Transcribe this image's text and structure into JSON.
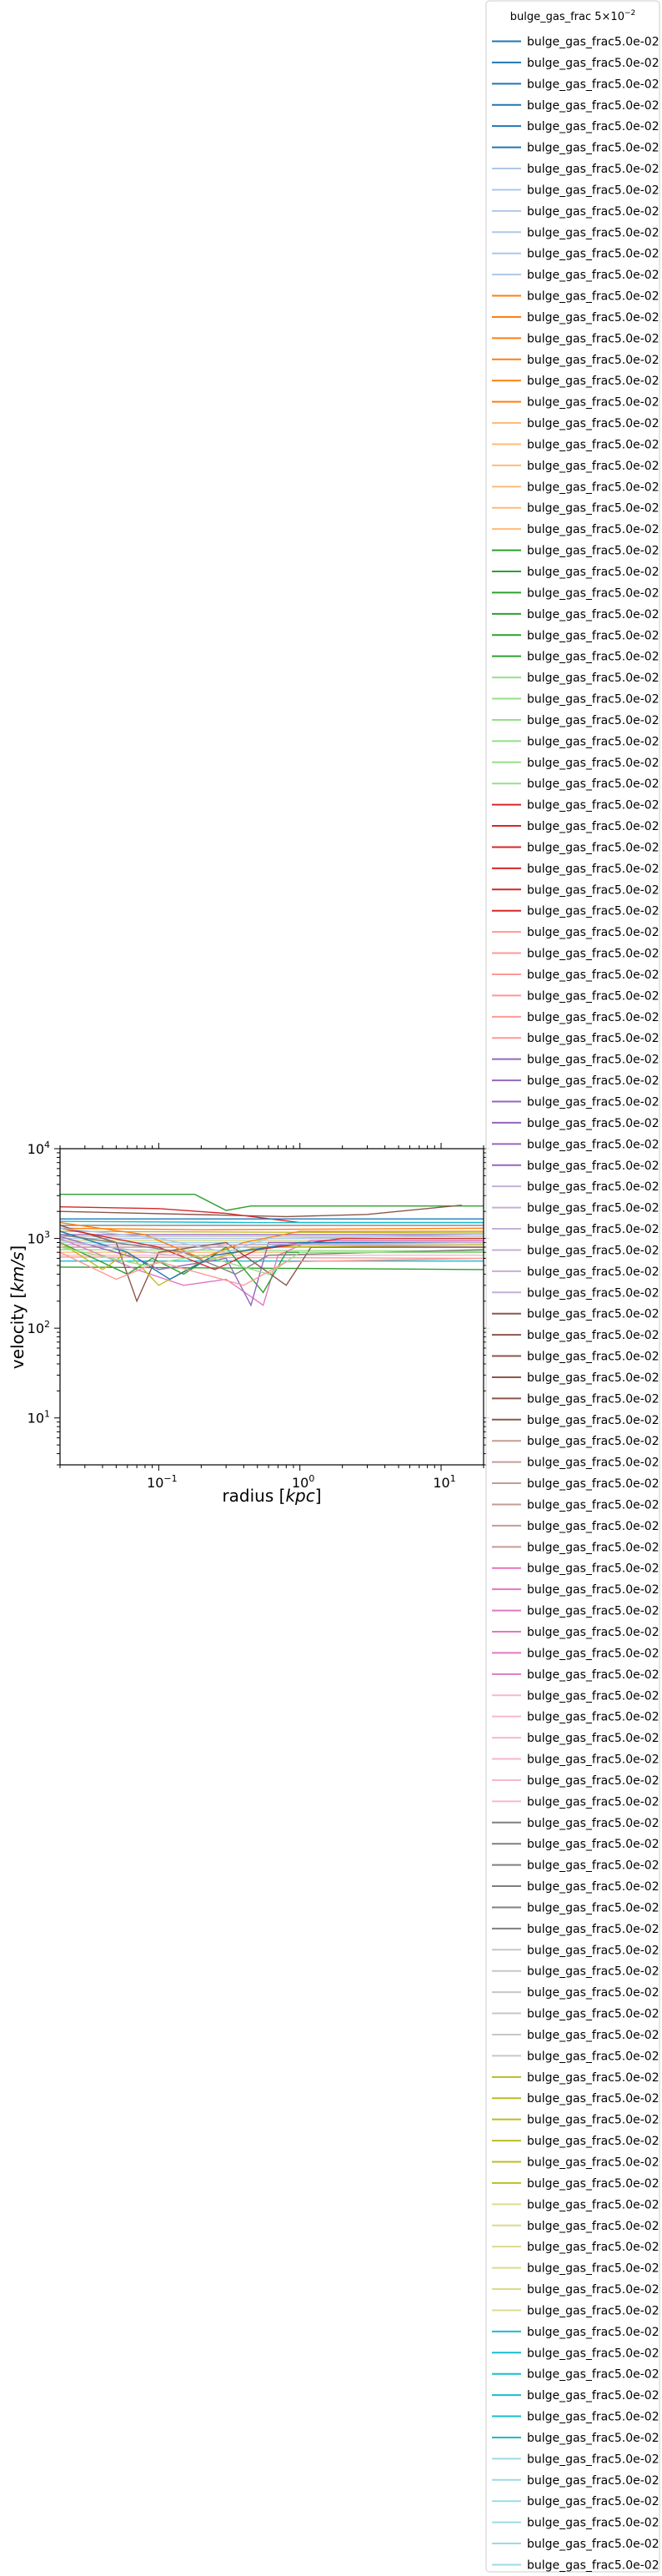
{
  "chart_data": {
    "type": "line",
    "xlabel": "radius [kpc]",
    "ylabel": "velocity [km/s]",
    "x_scale": "log",
    "y_scale": "log",
    "xlim": [
      0.02,
      20
    ],
    "ylim": [
      3,
      10000
    ],
    "x_ticks": [
      {
        "value": 0.1,
        "label": "10^-1"
      },
      {
        "value": 1,
        "label": "10^0"
      },
      {
        "value": 10,
        "label": "10^1"
      }
    ],
    "y_ticks": [
      {
        "value": 10,
        "label": "10^1"
      },
      {
        "value": 100,
        "label": "10^2"
      },
      {
        "value": 1000,
        "label": "10^3"
      },
      {
        "value": 10000,
        "label": "10^4"
      }
    ],
    "grid": false,
    "legend": {
      "title": "bulge_gas_frac 5×10^-2",
      "placement": "outside-right",
      "entry_label": "bulge_gas_frac5.0e-02",
      "count": 120,
      "palette": [
        "#1f77b4",
        "#aec7e8",
        "#ff7f0e",
        "#ffbb78",
        "#2ca02c",
        "#98df8a",
        "#d62728",
        "#ff9896",
        "#9467bd",
        "#c5b0d5",
        "#8c564b",
        "#c49c94",
        "#e377c2",
        "#f7b6d2",
        "#7f7f7f",
        "#c7c7c7",
        "#bcbd22",
        "#dbdb8d",
        "#17becf",
        "#9edae5"
      ],
      "entries_per_color": 6
    },
    "series": [
      {
        "color": "#2ca02c",
        "points": [
          [
            0.02,
            3100
          ],
          [
            0.18,
            3100
          ],
          [
            0.3,
            2050
          ],
          [
            0.45,
            2300
          ],
          [
            20,
            2300
          ]
        ]
      },
      {
        "color": "#8c564b",
        "points": [
          [
            0.02,
            2000
          ],
          [
            0.8,
            1750
          ],
          [
            3,
            1850
          ],
          [
            14,
            2350
          ]
        ]
      },
      {
        "color": "#d62728",
        "points": [
          [
            0.02,
            2250
          ],
          [
            0.1,
            2150
          ],
          [
            0.3,
            1900
          ],
          [
            1,
            1500
          ],
          [
            20,
            1500
          ]
        ]
      },
      {
        "color": "#1f77b4",
        "points": [
          [
            0.02,
            1650
          ],
          [
            20,
            1650
          ]
        ]
      },
      {
        "color": "#17becf",
        "points": [
          [
            0.02,
            1550
          ],
          [
            0.5,
            1500
          ],
          [
            20,
            1500
          ]
        ]
      },
      {
        "color": "#7f7f7f",
        "points": [
          [
            0.02,
            1400
          ],
          [
            20,
            1400
          ]
        ]
      },
      {
        "color": "#ff7f0e",
        "points": [
          [
            0.02,
            1300
          ],
          [
            0.2,
            1250
          ],
          [
            20,
            1300
          ]
        ]
      },
      {
        "color": "#bcbd22",
        "points": [
          [
            0.02,
            1200
          ],
          [
            20,
            1150
          ]
        ]
      },
      {
        "color": "#9467bd",
        "points": [
          [
            0.02,
            1100
          ],
          [
            20,
            1100
          ]
        ]
      },
      {
        "color": "#c7c7c7",
        "points": [
          [
            0.02,
            1050
          ],
          [
            20,
            1050
          ]
        ]
      },
      {
        "color": "#aec7e8",
        "points": [
          [
            0.02,
            1000
          ],
          [
            20,
            1000
          ]
        ]
      },
      {
        "color": "#dbdb8d",
        "points": [
          [
            0.02,
            950
          ],
          [
            20,
            950
          ]
        ]
      },
      {
        "color": "#9edae5",
        "points": [
          [
            0.02,
            900
          ],
          [
            20,
            900
          ]
        ]
      },
      {
        "color": "#c5b0d5",
        "points": [
          [
            0.02,
            850
          ],
          [
            20,
            850
          ]
        ]
      },
      {
        "color": "#c49c94",
        "points": [
          [
            0.02,
            800
          ],
          [
            20,
            800
          ]
        ]
      },
      {
        "color": "#98df8a",
        "points": [
          [
            0.02,
            750
          ],
          [
            20,
            720
          ]
        ]
      },
      {
        "color": "#ffbb78",
        "points": [
          [
            0.02,
            700
          ],
          [
            20,
            700
          ]
        ]
      },
      {
        "color": "#f7b6d2",
        "points": [
          [
            0.02,
            650
          ],
          [
            20,
            650
          ]
        ]
      },
      {
        "color": "#ff9896",
        "points": [
          [
            0.02,
            620
          ],
          [
            20,
            600
          ]
        ]
      },
      {
        "color": "#17becf",
        "points": [
          [
            0.02,
            560
          ],
          [
            20,
            560
          ]
        ]
      },
      {
        "color": "#2ca02c",
        "points": [
          [
            0.02,
            480
          ],
          [
            20,
            450
          ]
        ]
      },
      {
        "color": "#e377c2",
        "points": [
          [
            0.02,
            1000
          ],
          [
            0.07,
            450
          ],
          [
            0.15,
            300
          ],
          [
            0.3,
            350
          ],
          [
            0.55,
            180
          ],
          [
            0.7,
            650
          ],
          [
            1.2,
            950
          ],
          [
            20,
            950
          ]
        ]
      },
      {
        "color": "#2ca02c",
        "points": [
          [
            0.02,
            900
          ],
          [
            0.06,
            400
          ],
          [
            0.09,
            600
          ],
          [
            0.15,
            400
          ],
          [
            0.3,
            800
          ],
          [
            0.55,
            250
          ],
          [
            0.8,
            700
          ],
          [
            20,
            700
          ]
        ]
      },
      {
        "color": "#9467bd",
        "points": [
          [
            0.02,
            1050
          ],
          [
            0.07,
            600
          ],
          [
            0.1,
            450
          ],
          [
            0.3,
            600
          ],
          [
            0.45,
            180
          ],
          [
            0.6,
            900
          ],
          [
            20,
            900
          ]
        ]
      },
      {
        "color": "#8c564b",
        "points": [
          [
            0.02,
            1400
          ],
          [
            0.05,
            900
          ],
          [
            0.07,
            200
          ],
          [
            0.1,
            700
          ],
          [
            0.3,
            900
          ],
          [
            0.8,
            300
          ],
          [
            1.2,
            800
          ],
          [
            20,
            800
          ]
        ]
      },
      {
        "color": "#bcbd22",
        "points": [
          [
            0.02,
            900
          ],
          [
            0.04,
            450
          ],
          [
            0.06,
            700
          ],
          [
            0.1,
            300
          ],
          [
            0.2,
            550
          ],
          [
            0.5,
            800
          ],
          [
            20,
            850
          ]
        ]
      },
      {
        "color": "#ff7f0e",
        "points": [
          [
            0.02,
            1500
          ],
          [
            0.08,
            1100
          ],
          [
            0.2,
            600
          ],
          [
            0.4,
            900
          ],
          [
            1,
            1200
          ],
          [
            20,
            1200
          ]
        ]
      },
      {
        "color": "#d62728",
        "points": [
          [
            0.02,
            1300
          ],
          [
            0.1,
            800
          ],
          [
            0.25,
            450
          ],
          [
            0.5,
            750
          ],
          [
            2,
            1000
          ],
          [
            20,
            1000
          ]
        ]
      },
      {
        "color": "#1f77b4",
        "points": [
          [
            0.02,
            1200
          ],
          [
            0.06,
            700
          ],
          [
            0.12,
            350
          ],
          [
            0.25,
            650
          ],
          [
            1,
            900
          ],
          [
            20,
            900
          ]
        ]
      },
      {
        "color": "#7f7f7f",
        "points": [
          [
            0.02,
            1100
          ],
          [
            0.15,
            700
          ],
          [
            0.35,
            400
          ],
          [
            0.6,
            650
          ],
          [
            20,
            750
          ]
        ]
      },
      {
        "color": "#98df8a",
        "points": [
          [
            0.02,
            800
          ],
          [
            0.08,
            500
          ],
          [
            0.2,
            650
          ],
          [
            0.6,
            400
          ],
          [
            1,
            700
          ],
          [
            20,
            700
          ]
        ]
      },
      {
        "color": "#aec7e8",
        "points": [
          [
            0.02,
            1300
          ],
          [
            0.1,
            1000
          ],
          [
            0.3,
            700
          ],
          [
            0.6,
            1000
          ],
          [
            20,
            1100
          ]
        ]
      },
      {
        "color": "#ff9896",
        "points": [
          [
            0.02,
            700
          ],
          [
            0.05,
            350
          ],
          [
            0.1,
            550
          ],
          [
            0.4,
            300
          ],
          [
            0.8,
            550
          ],
          [
            20,
            600
          ]
        ]
      },
      {
        "color": "#c5b0d5",
        "points": [
          [
            0.02,
            950
          ],
          [
            0.12,
            650
          ],
          [
            0.3,
            850
          ],
          [
            20,
            900
          ]
        ]
      }
    ]
  }
}
